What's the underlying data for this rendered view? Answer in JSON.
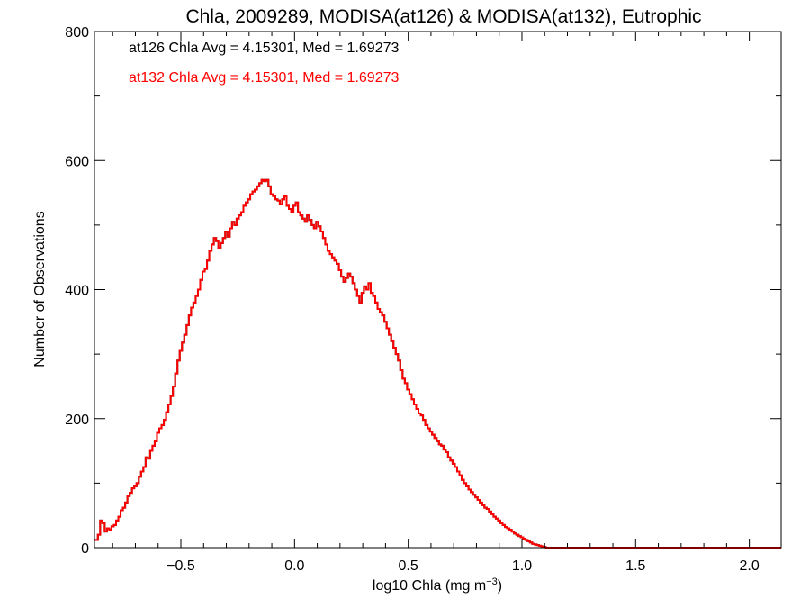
{
  "chart_data": {
    "type": "histogram",
    "title": "Chla, 2009289, MODISA(at126) & MODISA(at132), Eutrophic",
    "xlabel": "log10 Chla (mg m",
    "xlabel_sup": "−3",
    "xlabel_suffix": ")",
    "ylabel": "Number of Observations",
    "xlim": [
      -0.88,
      2.14
    ],
    "ylim": [
      0,
      800
    ],
    "x_ticks": [
      -0.5,
      0.0,
      0.5,
      1.0,
      1.5,
      2.0
    ],
    "x_tick_labels": [
      "−0.5",
      "0.0",
      "0.5",
      "1.0",
      "1.5",
      "2.0"
    ],
    "y_ticks": [
      0,
      200,
      400,
      600,
      800
    ],
    "y_tick_labels": [
      "0",
      "200",
      "400",
      "600",
      "800"
    ],
    "grid": false,
    "annotations": [
      {
        "text": "at126 Chla Avg = 4.15301, Med = 1.69273",
        "color": "#000000"
      },
      {
        "text": "at132 Chla Avg = 4.15301, Med = 1.69273",
        "color": "#ff0000"
      }
    ],
    "bin_start": -0.875,
    "bin_width": 0.01,
    "series": [
      {
        "name": "at126",
        "color": "#000000",
        "values": [
          12,
          20,
          42,
          38,
          25,
          30,
          28,
          33,
          35,
          42,
          48,
          58,
          62,
          70,
          80,
          85,
          92,
          95,
          100,
          110,
          118,
          125,
          140,
          138,
          150,
          158,
          165,
          178,
          185,
          190,
          198,
          210,
          222,
          235,
          250,
          270,
          290,
          305,
          318,
          330,
          345,
          360,
          372,
          380,
          390,
          400,
          415,
          428,
          432,
          445,
          460,
          470,
          480,
          475,
          465,
          472,
          480,
          490,
          482,
          495,
          505,
          500,
          510,
          515,
          520,
          530,
          535,
          540,
          548,
          552,
          555,
          560,
          565,
          570,
          568,
          570,
          560,
          548,
          545,
          540,
          538,
          532,
          540,
          545,
          530,
          525,
          520,
          530,
          535,
          520,
          515,
          510,
          505,
          515,
          508,
          500,
          495,
          505,
          498,
          490,
          480,
          470,
          460,
          455,
          450,
          445,
          440,
          430,
          420,
          412,
          418,
          425,
          420,
          410,
          400,
          390,
          380,
          395,
          405,
          400,
          410,
          395,
          390,
          380,
          370,
          365,
          360,
          350,
          340,
          330,
          320,
          310,
          300,
          290,
          275,
          262,
          255,
          245,
          238,
          230,
          222,
          215,
          208,
          205,
          198,
          190,
          185,
          180,
          175,
          170,
          165,
          160,
          158,
          152,
          148,
          140,
          135,
          130,
          125,
          118,
          112,
          105,
          100,
          95,
          90,
          86,
          82,
          78,
          74,
          70,
          66,
          62,
          60,
          56,
          52,
          48,
          45,
          42,
          38,
          35,
          32,
          30,
          28,
          25,
          22,
          20,
          18,
          16,
          14,
          12,
          10,
          8,
          6,
          5,
          4,
          3,
          2,
          1,
          0,
          0,
          0,
          0,
          0,
          0,
          0,
          0,
          0
        ]
      },
      {
        "name": "at132",
        "color": "#ff0000",
        "values": [
          12,
          20,
          42,
          38,
          25,
          30,
          28,
          33,
          35,
          42,
          48,
          58,
          62,
          70,
          80,
          85,
          92,
          95,
          100,
          110,
          118,
          125,
          140,
          138,
          150,
          158,
          165,
          178,
          185,
          190,
          198,
          210,
          222,
          235,
          250,
          270,
          290,
          305,
          318,
          330,
          345,
          360,
          372,
          380,
          390,
          400,
          415,
          428,
          432,
          445,
          460,
          470,
          480,
          475,
          465,
          472,
          480,
          490,
          482,
          495,
          505,
          500,
          510,
          515,
          520,
          530,
          535,
          540,
          548,
          552,
          555,
          560,
          565,
          570,
          568,
          570,
          560,
          548,
          545,
          540,
          538,
          532,
          540,
          545,
          530,
          525,
          520,
          530,
          535,
          520,
          515,
          510,
          505,
          515,
          508,
          500,
          495,
          505,
          498,
          490,
          480,
          470,
          460,
          455,
          450,
          445,
          440,
          430,
          420,
          412,
          418,
          425,
          420,
          410,
          400,
          390,
          380,
          395,
          405,
          400,
          410,
          395,
          390,
          380,
          370,
          365,
          360,
          350,
          340,
          330,
          320,
          310,
          300,
          290,
          275,
          262,
          255,
          245,
          238,
          230,
          222,
          215,
          208,
          205,
          198,
          190,
          185,
          180,
          175,
          170,
          165,
          160,
          158,
          152,
          148,
          140,
          135,
          130,
          125,
          118,
          112,
          105,
          100,
          95,
          90,
          86,
          82,
          78,
          74,
          70,
          66,
          62,
          60,
          56,
          52,
          48,
          45,
          42,
          38,
          35,
          32,
          30,
          28,
          25,
          22,
          20,
          18,
          16,
          14,
          12,
          10,
          8,
          6,
          5,
          4,
          3,
          2,
          1,
          0,
          0,
          0,
          0,
          0,
          0,
          0,
          0,
          0
        ]
      }
    ]
  }
}
